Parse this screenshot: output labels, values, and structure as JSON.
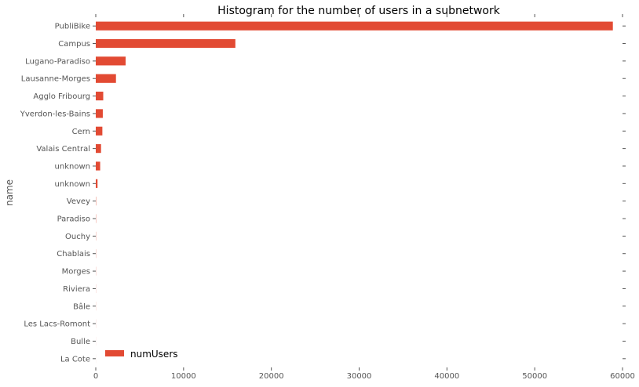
{
  "chart_data": {
    "type": "bar",
    "orientation": "horizontal",
    "title": "Histogram for the number of users in a subnetwork",
    "ylabel": "name",
    "xlabel": "",
    "xlim": [
      0,
      60000
    ],
    "xticks": [
      "0",
      "10000",
      "20000",
      "30000",
      "40000",
      "50000",
      "60000"
    ],
    "categories": [
      "PubliBike",
      "Campus",
      "Lugano-Paradiso",
      "Lausanne-Morges",
      "Agglo Fribourg",
      "Yverdon-les-Bains",
      "Cern",
      "Valais Central",
      "unknown",
      "unknown",
      "Vevey",
      "Paradiso",
      "Ouchy",
      "Chablais",
      "Morges",
      "Riviera",
      "Bâle",
      "Les Lacs-Romont",
      "Bulle",
      "La Cote"
    ],
    "series": [
      {
        "name": "numUsers",
        "color": "#E24A33",
        "values": [
          58900,
          15900,
          3400,
          2300,
          850,
          800,
          750,
          600,
          500,
          200,
          30,
          25,
          20,
          18,
          15,
          12,
          10,
          8,
          5,
          3
        ]
      }
    ],
    "legend_position": "bottom-left",
    "grid": false
  }
}
